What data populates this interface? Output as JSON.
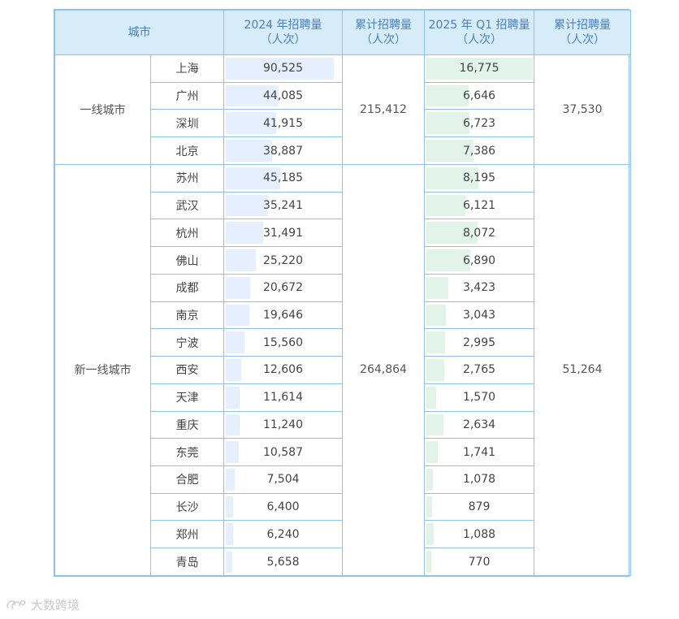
{
  "chart_data": {
    "type": "table",
    "headers": {
      "city": "城市",
      "y2024": "2024 年招聘量",
      "y2024_unit": "（人次）",
      "cum2024": "累计招聘量",
      "cum2024_unit": "（人次）",
      "q1_2025": "2025 年 Q1 招聘量",
      "q1_2025_unit": "（人次）",
      "cum2025": "累计招聘量",
      "cum2025_unit": "（人次）"
    },
    "groups": [
      {
        "name": "一线城市",
        "total_2024": "215,412",
        "total_2025q1": "37,530",
        "rows": [
          {
            "city": "上海",
            "v2024": 90525,
            "v2024_text": "90,525",
            "v2025q1": 16775,
            "v2025q1_text": "16,775"
          },
          {
            "city": "广州",
            "v2024": 44085,
            "v2024_text": "44,085",
            "v2025q1": 6646,
            "v2025q1_text": "6,646"
          },
          {
            "city": "深圳",
            "v2024": 41915,
            "v2024_text": "41,915",
            "v2025q1": 6723,
            "v2025q1_text": "6,723"
          },
          {
            "city": "北京",
            "v2024": 38887,
            "v2024_text": "38,887",
            "v2025q1": 7386,
            "v2025q1_text": "7,386"
          }
        ]
      },
      {
        "name": "新一线城市",
        "total_2024": "264,864",
        "total_2025q1": "51,264",
        "rows": [
          {
            "city": "苏州",
            "v2024": 45185,
            "v2024_text": "45,185",
            "v2025q1": 8195,
            "v2025q1_text": "8,195"
          },
          {
            "city": "武汉",
            "v2024": 35241,
            "v2024_text": "35,241",
            "v2025q1": 6121,
            "v2025q1_text": "6,121"
          },
          {
            "city": "杭州",
            "v2024": 31491,
            "v2024_text": "31,491",
            "v2025q1": 8072,
            "v2025q1_text": "8,072"
          },
          {
            "city": "佛山",
            "v2024": 25220,
            "v2024_text": "25,220",
            "v2025q1": 6890,
            "v2025q1_text": "6,890"
          },
          {
            "city": "成都",
            "v2024": 20672,
            "v2024_text": "20,672",
            "v2025q1": 3423,
            "v2025q1_text": "3,423"
          },
          {
            "city": "南京",
            "v2024": 19646,
            "v2024_text": "19,646",
            "v2025q1": 3043,
            "v2025q1_text": "3,043"
          },
          {
            "city": "宁波",
            "v2024": 15560,
            "v2024_text": "15,560",
            "v2025q1": 2995,
            "v2025q1_text": "2,995"
          },
          {
            "city": "西安",
            "v2024": 12606,
            "v2024_text": "12,606",
            "v2025q1": 2765,
            "v2025q1_text": "2,765"
          },
          {
            "city": "天津",
            "v2024": 11614,
            "v2024_text": "11,614",
            "v2025q1": 1570,
            "v2025q1_text": "1,570"
          },
          {
            "city": "重庆",
            "v2024": 11240,
            "v2024_text": "11,240",
            "v2025q1": 2634,
            "v2025q1_text": "2,634"
          },
          {
            "city": "东莞",
            "v2024": 10587,
            "v2024_text": "10,587",
            "v2025q1": 1741,
            "v2025q1_text": "1,741"
          },
          {
            "city": "合肥",
            "v2024": 7504,
            "v2024_text": "7,504",
            "v2025q1": 1078,
            "v2025q1_text": "1,078"
          },
          {
            "city": "长沙",
            "v2024": 6400,
            "v2024_text": "6,400",
            "v2025q1": 879,
            "v2025q1_text": "879"
          },
          {
            "city": "郑州",
            "v2024": 6240,
            "v2024_text": "6,240",
            "v2025q1": 1088,
            "v2025q1_text": "1,088"
          },
          {
            "city": "青岛",
            "v2024": 5658,
            "v2024_text": "5,658",
            "v2025q1": 770,
            "v2025q1_text": "770"
          }
        ]
      }
    ],
    "max_2024": 90525,
    "max_2025q1": 16775,
    "colors": {
      "header_bg": "#d6ecf9",
      "header_text": "#4a7fbf",
      "border": "#8ec2ea",
      "bar_2024": "#e6effd",
      "bar_2025q1": "#e2f3ea"
    }
  },
  "watermark": {
    "text": "大数跨境",
    "icon": "brand-logo-icon"
  }
}
